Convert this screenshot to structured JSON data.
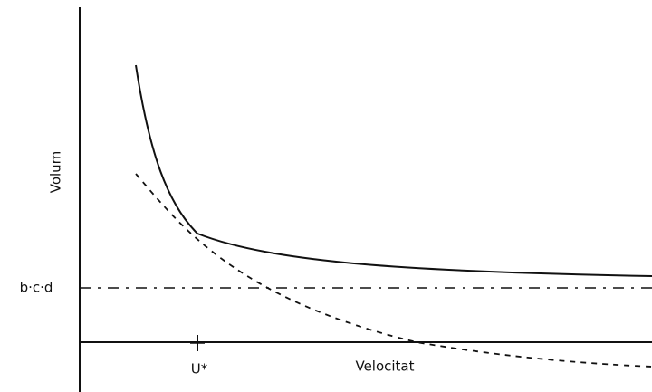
{
  "axes": {
    "y_label": "Volum",
    "x_label": "Velocitat"
  },
  "labels": {
    "level": "b·c·d",
    "x_mark": "U*"
  }
}
